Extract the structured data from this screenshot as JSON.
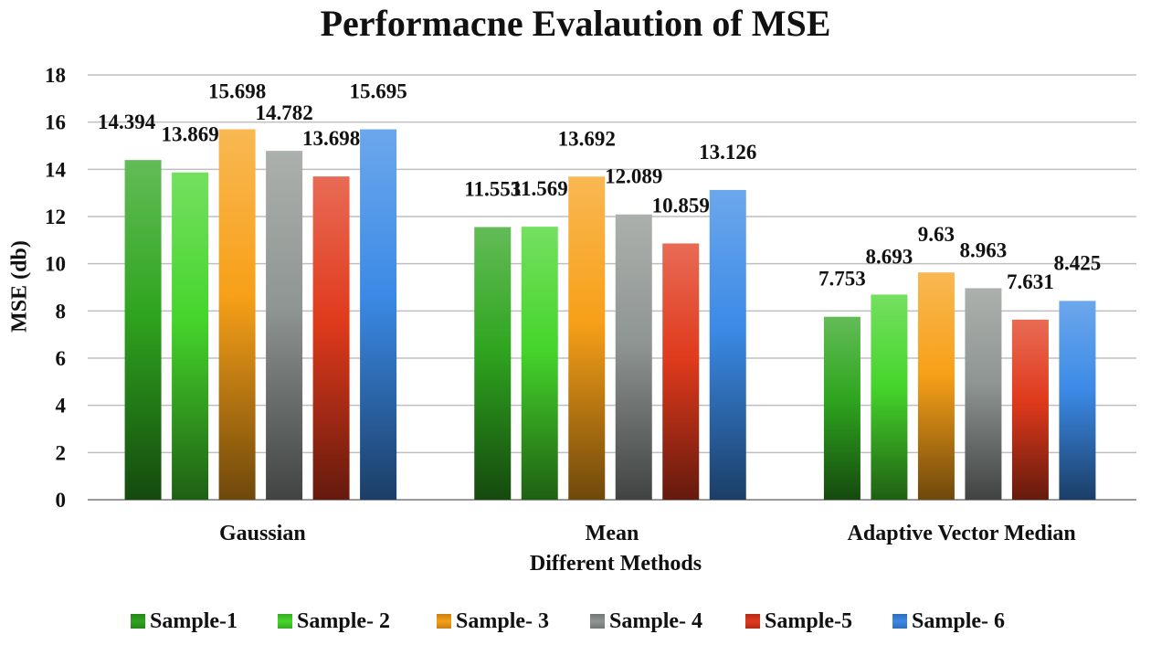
{
  "chart_data": {
    "type": "bar",
    "title": "Performacne Evalaution of MSE",
    "xlabel": "Different Methods",
    "ylabel": "MSE (db)",
    "ylim": [
      0,
      18
    ],
    "yticks": [
      0,
      2,
      4,
      6,
      8,
      10,
      12,
      14,
      16,
      18
    ],
    "grid": true,
    "legend_position": "bottom",
    "categories": [
      "Gaussian",
      "Mean",
      "Adaptive Vector Median"
    ],
    "series": [
      {
        "name": "Sample-1",
        "color": "#2fa51f",
        "values": [
          14.394,
          11.553,
          7.753
        ],
        "labels": [
          "14.394",
          "11.553",
          "7.753"
        ]
      },
      {
        "name": "Sample- 2",
        "color": "#45d52b",
        "values": [
          13.869,
          11.569,
          8.693
        ],
        "labels": [
          "13.869",
          "11.569",
          "8.693"
        ]
      },
      {
        "name": "Sample- 3",
        "color": "#f7a018",
        "values": [
          15.698,
          13.692,
          9.63
        ],
        "labels": [
          "15.698",
          "13.692",
          "9.63"
        ]
      },
      {
        "name": "Sample- 4",
        "color": "#8f9592",
        "values": [
          14.782,
          12.089,
          8.963
        ],
        "labels": [
          "14.782",
          "12.089",
          "8.963"
        ]
      },
      {
        "name": "Sample-5",
        "color": "#e03a1c",
        "values": [
          13.698,
          10.859,
          7.631
        ],
        "labels": [
          "13.698",
          "10.859",
          "7.631"
        ]
      },
      {
        "name": "Sample- 6",
        "color": "#3b8ae6",
        "values": [
          15.695,
          13.126,
          8.425
        ],
        "labels": [
          "15.695",
          "13.126",
          "8.425"
        ]
      }
    ]
  }
}
